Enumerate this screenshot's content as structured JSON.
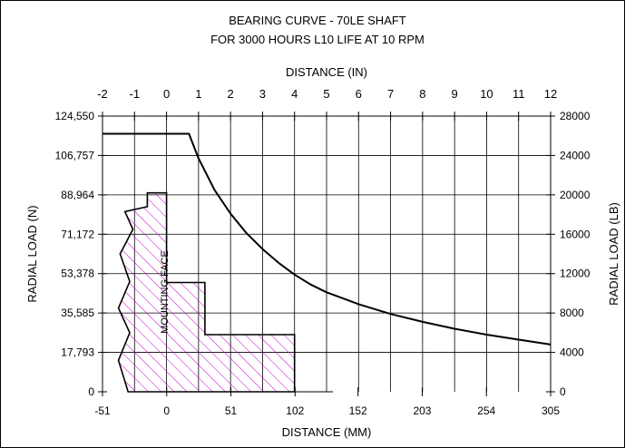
{
  "chart_data": {
    "type": "line",
    "title": "BEARING CURVE - 70LE SHAFT",
    "subtitle": "FOR 3000 HOURS L10 LIFE AT 10 RPM",
    "top_axis": {
      "label": "DISTANCE (IN)",
      "range": [
        -2,
        12
      ],
      "ticks": [
        "-2",
        "-1",
        "0",
        "1",
        "2",
        "3",
        "4",
        "5",
        "6",
        "7",
        "8",
        "9",
        "10",
        "11",
        "12"
      ]
    },
    "bottom_axis": {
      "label": "DISTANCE (MM)",
      "range": [
        -51,
        305
      ],
      "ticks": [
        "-51",
        "0",
        "51",
        "102",
        "152",
        "203",
        "254",
        "305"
      ]
    },
    "left_axis": {
      "label": "RADIAL LOAD (N)",
      "range": [
        0,
        124550
      ],
      "ticks": [
        "0",
        "17,793",
        "35,585",
        "53,378",
        "71,172",
        "88,964",
        "106,757",
        "124,550"
      ]
    },
    "right_axis": {
      "label": "RADIAL LOAD (LB)",
      "range": [
        0,
        28000
      ],
      "ticks": [
        "0",
        "4000",
        "8000",
        "12000",
        "16000",
        "20000",
        "24000",
        "28000"
      ]
    },
    "grid": true,
    "annotation": "MOUNTING FACE",
    "series": [
      {
        "x_in": [
          -2,
          0.7,
          1.0,
          1.5,
          2.0,
          2.5,
          3.0,
          3.5,
          4.0,
          4.5,
          5.0,
          6.0,
          7.0,
          8.0,
          9.0,
          10.0,
          11.0,
          12.0
        ],
        "y_lb": [
          26200,
          26200,
          23700,
          20500,
          18100,
          16100,
          14500,
          13100,
          11900,
          10900,
          10100,
          8900,
          7900,
          7100,
          6400,
          5800,
          5300,
          4800
        ]
      }
    ],
    "shaft_outline_in": {
      "x": [
        -1.2,
        -0.05,
        -0.05,
        1.2,
        1.2,
        4.0,
        4.0,
        -1.2
      ],
      "y_lb": [
        0,
        0,
        0,
        0,
        0,
        0,
        0,
        0
      ]
    },
    "hatch_color": "#d000d0",
    "line_color": "#000000"
  }
}
